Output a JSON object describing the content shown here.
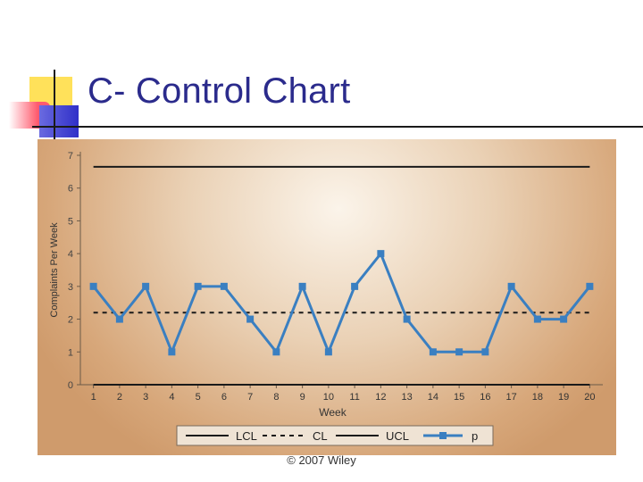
{
  "slide": {
    "title": "C- Control Chart",
    "copyright": "© 2007 Wiley"
  },
  "colors": {
    "title": "#2b2b8c",
    "series": "#3a7fc1",
    "lines": "#1a1a1a",
    "panel": "#dcb28a"
  },
  "chart_data": {
    "type": "line",
    "xlabel": "Week",
    "ylabel": "Complaints Per Week",
    "x": [
      1,
      2,
      3,
      4,
      5,
      6,
      7,
      8,
      9,
      10,
      11,
      12,
      13,
      14,
      15,
      16,
      17,
      18,
      19,
      20
    ],
    "xlim": [
      0.5,
      20.5
    ],
    "ylim": [
      0,
      7
    ],
    "yticks": [
      0,
      1,
      2,
      3,
      4,
      5,
      6,
      7
    ],
    "grid": false,
    "legend_position": "bottom",
    "series": [
      {
        "name": "LCL",
        "style": "solid",
        "values": [
          0,
          0,
          0,
          0,
          0,
          0,
          0,
          0,
          0,
          0,
          0,
          0,
          0,
          0,
          0,
          0,
          0,
          0,
          0,
          0
        ]
      },
      {
        "name": "CL",
        "style": "dashed",
        "values": [
          2.2,
          2.2,
          2.2,
          2.2,
          2.2,
          2.2,
          2.2,
          2.2,
          2.2,
          2.2,
          2.2,
          2.2,
          2.2,
          2.2,
          2.2,
          2.2,
          2.2,
          2.2,
          2.2,
          2.2
        ]
      },
      {
        "name": "UCL",
        "style": "solid",
        "values": [
          6.65,
          6.65,
          6.65,
          6.65,
          6.65,
          6.65,
          6.65,
          6.65,
          6.65,
          6.65,
          6.65,
          6.65,
          6.65,
          6.65,
          6.65,
          6.65,
          6.65,
          6.65,
          6.65,
          6.65
        ]
      },
      {
        "name": "p",
        "style": "marker-line",
        "values": [
          3,
          2,
          3,
          1,
          3,
          3,
          2,
          1,
          3,
          1,
          3,
          4,
          2,
          1,
          1,
          1,
          3,
          2,
          2,
          3
        ]
      }
    ]
  }
}
